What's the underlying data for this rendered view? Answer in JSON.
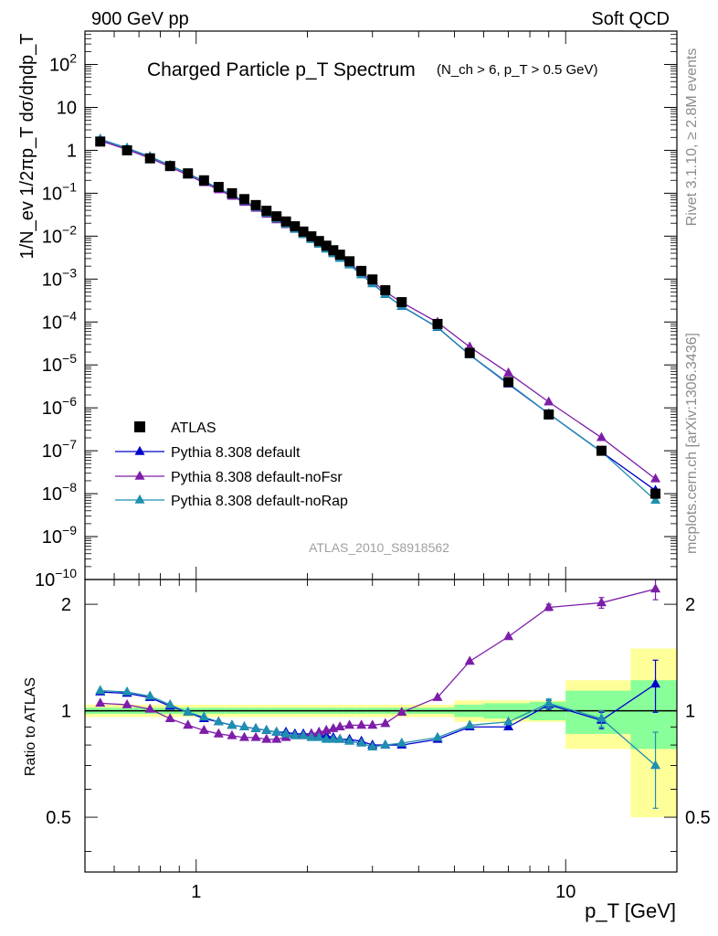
{
  "header": {
    "left": "900 GeV pp",
    "right": "Soft QCD"
  },
  "side_labels": {
    "rivet": "Rivet 3.1.10, ≥ 2.8M events",
    "mcplots": "mcplots.cern.ch [arXiv:1306.3436]"
  },
  "chart_data": [
    {
      "type": "scatter",
      "title": "Charged Particle p_T Spectrum",
      "subtitle": "(N_ch > 6, p_T > 0.5 GeV)",
      "ylabel": "1/N_ev 1/2πp_T dσ/dηdp_T",
      "xlabel": "p_T [GeV]",
      "xscale": "log",
      "yscale": "log",
      "xlim": [
        0.5,
        20
      ],
      "ylim": [
        1e-10,
        600
      ],
      "annotation": "ATLAS_2010_S8918562",
      "legend_position": "bottom-left",
      "y_tick_labels": [
        "10^-10",
        "10^-9",
        "10^-8",
        "10^-7",
        "10^-6",
        "10^-5",
        "10^-4",
        "10^-3",
        "10^-2",
        "10^-1",
        "1",
        "10",
        "10^2"
      ],
      "x": [
        0.55,
        0.65,
        0.75,
        0.85,
        0.95,
        1.05,
        1.15,
        1.25,
        1.35,
        1.45,
        1.55,
        1.65,
        1.75,
        1.85,
        1.95,
        2.05,
        2.15,
        2.25,
        2.35,
        2.45,
        2.6,
        2.8,
        3.0,
        3.25,
        3.6,
        4.5,
        5.5,
        7.0,
        9.0,
        12.5,
        17.5
      ],
      "series": [
        {
          "name": "ATLAS",
          "color": "#000000",
          "marker": "square",
          "values": [
            1.6,
            1.0,
            0.65,
            0.43,
            0.29,
            0.2,
            0.14,
            0.1,
            0.073,
            0.053,
            0.039,
            0.029,
            0.022,
            0.017,
            0.0128,
            0.0099,
            0.0077,
            0.006,
            0.0047,
            0.0037,
            0.0026,
            0.00155,
            0.00098,
            0.00055,
            0.00029,
            9e-05,
            1.9e-05,
            4e-06,
            7e-07,
            1e-07,
            1e-08
          ]
        },
        {
          "name": "Pythia 8.308 default",
          "color": "#0000cc",
          "marker": "triangle",
          "ratio": [
            1.13,
            1.12,
            1.09,
            1.03,
            0.99,
            0.95,
            0.93,
            0.91,
            0.9,
            0.89,
            0.88,
            0.87,
            0.87,
            0.86,
            0.86,
            0.86,
            0.85,
            0.85,
            0.84,
            0.83,
            0.83,
            0.82,
            0.8,
            0.8,
            0.8,
            0.83,
            0.9,
            0.9,
            1.04,
            0.94,
            1.19
          ],
          "ratio_err_index": [
            28,
            29,
            30
          ],
          "ratio_err": [
            0.03,
            0.05,
            0.2
          ]
        },
        {
          "name": "Pythia 8.308 default-noFsr",
          "color": "#7d1da8",
          "marker": "triangle",
          "ratio": [
            1.05,
            1.04,
            1.01,
            0.95,
            0.91,
            0.88,
            0.86,
            0.85,
            0.84,
            0.84,
            0.83,
            0.83,
            0.84,
            0.85,
            0.85,
            0.86,
            0.87,
            0.88,
            0.89,
            0.9,
            0.91,
            0.91,
            0.91,
            0.92,
            0.99,
            1.09,
            1.38,
            1.62,
            1.96,
            2.02,
            2.21
          ],
          "ratio_err_index": [
            28,
            29,
            30
          ],
          "ratio_err": [
            0.04,
            0.07,
            0.15
          ]
        },
        {
          "name": "Pythia 8.308 default-noRap",
          "color": "#1f8fb0",
          "marker": "triangle",
          "ratio": [
            1.14,
            1.13,
            1.1,
            1.04,
            0.99,
            0.96,
            0.93,
            0.91,
            0.9,
            0.89,
            0.88,
            0.87,
            0.86,
            0.85,
            0.85,
            0.84,
            0.84,
            0.83,
            0.83,
            0.83,
            0.82,
            0.81,
            0.79,
            0.8,
            0.81,
            0.84,
            0.91,
            0.93,
            1.05,
            0.95,
            0.7
          ],
          "ratio_err_index": [
            28,
            29,
            30
          ],
          "ratio_err": [
            0.03,
            0.05,
            0.17
          ]
        }
      ]
    },
    {
      "type": "scatter",
      "ylabel": "Ratio to ATLAS",
      "xlabel": "p_T [GeV]",
      "xscale": "log",
      "xlim": [
        0.5,
        20
      ],
      "ylim": [
        0.35,
        2.35
      ],
      "y_tick_labels": [
        "0.5",
        "1",
        "2"
      ],
      "x_tick_labels": [
        "1",
        "10"
      ],
      "band_edges": [
        0.5,
        0.6,
        0.7,
        0.8,
        0.9,
        1.0,
        1.1,
        1.2,
        1.3,
        1.4,
        1.5,
        1.6,
        1.7,
        1.8,
        1.9,
        2.0,
        2.1,
        2.2,
        2.3,
        2.4,
        2.5,
        2.7,
        2.9,
        3.1,
        3.4,
        3.8,
        5.0,
        6.0,
        8.0,
        10.0,
        15.0,
        20.0
      ],
      "stat_band": [
        0.02,
        0.02,
        0.02,
        0.02,
        0.02,
        0.02,
        0.02,
        0.02,
        0.02,
        0.02,
        0.02,
        0.02,
        0.02,
        0.02,
        0.02,
        0.02,
        0.02,
        0.02,
        0.02,
        0.02,
        0.02,
        0.02,
        0.02,
        0.02,
        0.02,
        0.02,
        0.04,
        0.05,
        0.06,
        0.14,
        0.22
      ],
      "total_band": [
        0.04,
        0.04,
        0.04,
        0.04,
        0.04,
        0.04,
        0.04,
        0.04,
        0.04,
        0.04,
        0.04,
        0.04,
        0.04,
        0.04,
        0.04,
        0.04,
        0.04,
        0.04,
        0.04,
        0.04,
        0.04,
        0.04,
        0.04,
        0.04,
        0.04,
        0.04,
        0.07,
        0.07,
        0.07,
        0.22,
        0.5
      ],
      "band_colors": {
        "total": "#ffff99",
        "stat": "#88ff99"
      }
    }
  ]
}
